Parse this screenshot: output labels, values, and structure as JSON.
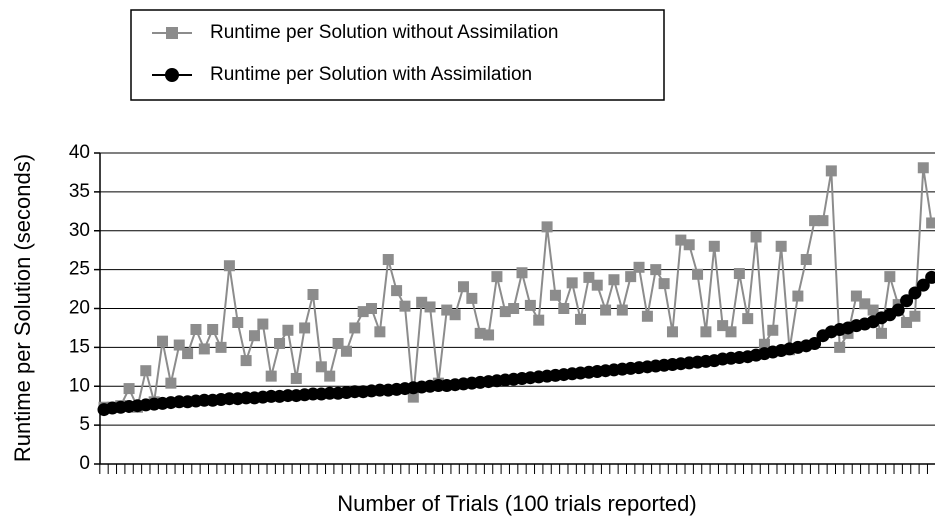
{
  "chart_data": {
    "type": "line",
    "xlabel": "Number of  Trials (100 trials reported)",
    "ylabel": "Runtime per Solution (seconds)",
    "ylim": [
      0,
      40
    ],
    "yticks": [
      0,
      5,
      10,
      15,
      20,
      25,
      30,
      35,
      40
    ],
    "grid": true,
    "series": [
      {
        "name": "Runtime per Solution without Assimilation",
        "color": "#8c8c8c",
        "marker": "square",
        "values": [
          7.3,
          7.3,
          7.5,
          9.7,
          7.3,
          12,
          8,
          15.8,
          10.4,
          15.3,
          14.2,
          17.3,
          14.8,
          17.3,
          15,
          25.5,
          18.2,
          13.3,
          16.5,
          18,
          11.3,
          15.5,
          17.2,
          11,
          17.5,
          21.8,
          12.5,
          11.3,
          15.5,
          14.5,
          17.5,
          19.6,
          20,
          17,
          26.3,
          22.3,
          20.3,
          8.6,
          20.8,
          20.2,
          10.4,
          19.8,
          19.2,
          22.8,
          21.3,
          16.8,
          16.6,
          24.1,
          19.6,
          20,
          24.6,
          20.4,
          18.5,
          30.5,
          21.7,
          20,
          23.3,
          18.6,
          24,
          23,
          19.8,
          23.7,
          19.8,
          24.1,
          25.3,
          19,
          25,
          23.2,
          17,
          28.8,
          28.2,
          24.4,
          17,
          28,
          17.8,
          17,
          24.5,
          18.7,
          29.2,
          15.4,
          17.2,
          28,
          14.7,
          21.6,
          26.3,
          31.3,
          31.3,
          37.7,
          15,
          16.8,
          21.6,
          20.6,
          19.8,
          16.8,
          24.1,
          20.5,
          18.2,
          19,
          38.1,
          31
        ]
      },
      {
        "name": "Runtime per Solution with Assimilation",
        "color": "#000000",
        "marker": "circle",
        "values": [
          7.0,
          7.2,
          7.3,
          7.4,
          7.5,
          7.6,
          7.7,
          7.8,
          7.9,
          8.0,
          8.0,
          8.1,
          8.2,
          8.2,
          8.3,
          8.4,
          8.4,
          8.5,
          8.5,
          8.6,
          8.7,
          8.7,
          8.8,
          8.8,
          8.9,
          9.0,
          9.0,
          9.1,
          9.1,
          9.2,
          9.3,
          9.3,
          9.4,
          9.5,
          9.5,
          9.6,
          9.7,
          9.8,
          9.9,
          10.0,
          10.1,
          10.1,
          10.2,
          10.3,
          10.4,
          10.5,
          10.6,
          10.7,
          10.8,
          10.9,
          11.0,
          11.1,
          11.2,
          11.3,
          11.4,
          11.5,
          11.6,
          11.7,
          11.8,
          11.9,
          12.0,
          12.1,
          12.2,
          12.3,
          12.4,
          12.5,
          12.6,
          12.7,
          12.8,
          12.9,
          13.0,
          13.1,
          13.2,
          13.3,
          13.5,
          13.6,
          13.7,
          13.8,
          14.0,
          14.2,
          14.4,
          14.6,
          14.8,
          15.0,
          15.2,
          15.5,
          16.5,
          17.0,
          17.3,
          17.5,
          17.8,
          18.0,
          18.3,
          18.8,
          19.2,
          19.8,
          21.0,
          22.0,
          23.0,
          24.0
        ]
      }
    ]
  }
}
